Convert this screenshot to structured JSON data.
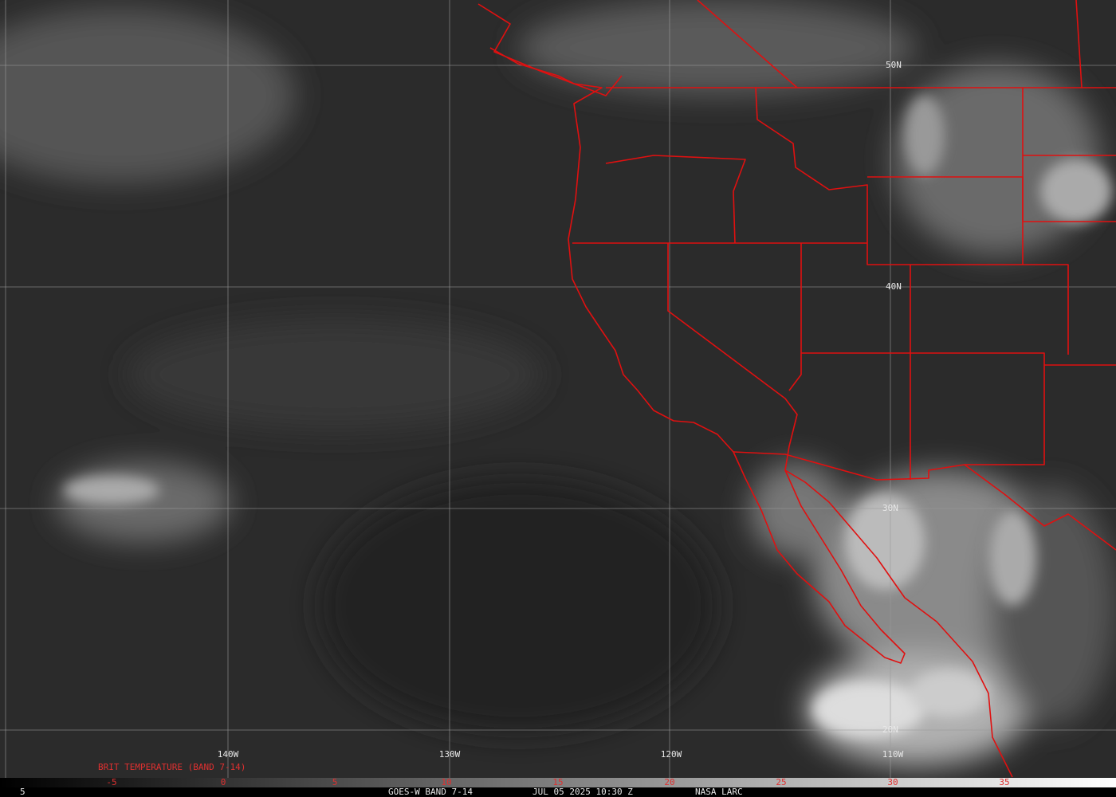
{
  "map": {
    "lat_labels": [
      "50N",
      "40N",
      "30N",
      "20N"
    ],
    "lon_labels": [
      "140W",
      "130W",
      "120W",
      "110W"
    ],
    "legend": {
      "title": "BRIT TEMPERATURE (BAND 7-14)",
      "ticks": [
        -5,
        0,
        5,
        10,
        15,
        20,
        25,
        30,
        35
      ]
    },
    "corner_label": "5",
    "footer": {
      "satellite": "GOES-W BAND 7-14",
      "time": "JUL 05 2025 10:30 Z",
      "source": "NASA LARC"
    }
  }
}
